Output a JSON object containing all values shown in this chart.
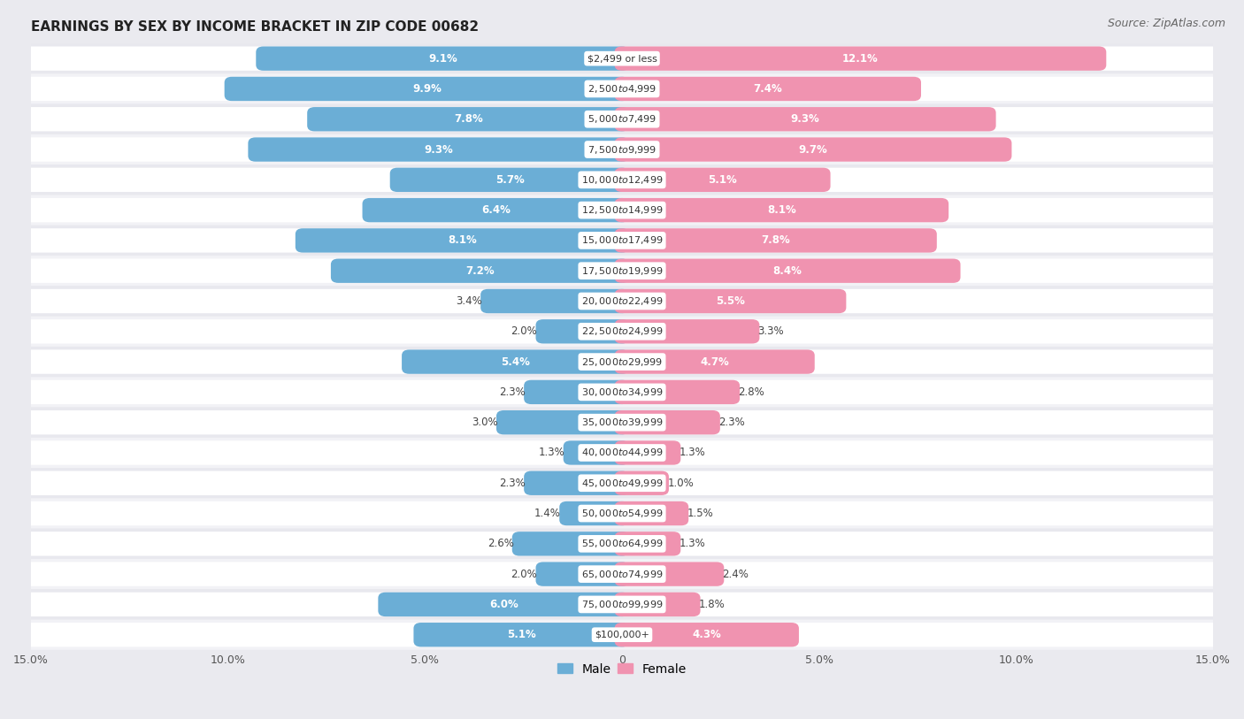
{
  "title": "EARNINGS BY SEX BY INCOME BRACKET IN ZIP CODE 00682",
  "source": "Source: ZipAtlas.com",
  "categories": [
    "$2,499 or less",
    "$2,500 to $4,999",
    "$5,000 to $7,499",
    "$7,500 to $9,999",
    "$10,000 to $12,499",
    "$12,500 to $14,999",
    "$15,000 to $17,499",
    "$17,500 to $19,999",
    "$20,000 to $22,499",
    "$22,500 to $24,999",
    "$25,000 to $29,999",
    "$30,000 to $34,999",
    "$35,000 to $39,999",
    "$40,000 to $44,999",
    "$45,000 to $49,999",
    "$50,000 to $54,999",
    "$55,000 to $64,999",
    "$65,000 to $74,999",
    "$75,000 to $99,999",
    "$100,000+"
  ],
  "male": [
    9.1,
    9.9,
    7.8,
    9.3,
    5.7,
    6.4,
    8.1,
    7.2,
    3.4,
    2.0,
    5.4,
    2.3,
    3.0,
    1.3,
    2.3,
    1.4,
    2.6,
    2.0,
    6.0,
    5.1
  ],
  "female": [
    12.1,
    7.4,
    9.3,
    9.7,
    5.1,
    8.1,
    7.8,
    8.4,
    5.5,
    3.3,
    4.7,
    2.8,
    2.3,
    1.3,
    1.0,
    1.5,
    1.3,
    2.4,
    1.8,
    4.3
  ],
  "male_color": "#6baed6",
  "female_color": "#f093b0",
  "male_label": "Male",
  "female_label": "Female",
  "xlim": 15.0,
  "bg_row_even": "#e8e8ee",
  "bg_row_odd": "#f2f2f6",
  "bar_bg": "#ffffff",
  "title_fontsize": 11,
  "source_fontsize": 9,
  "tick_fontsize": 9,
  "value_fontsize": 8.5,
  "category_fontsize": 8,
  "legend_fontsize": 10
}
